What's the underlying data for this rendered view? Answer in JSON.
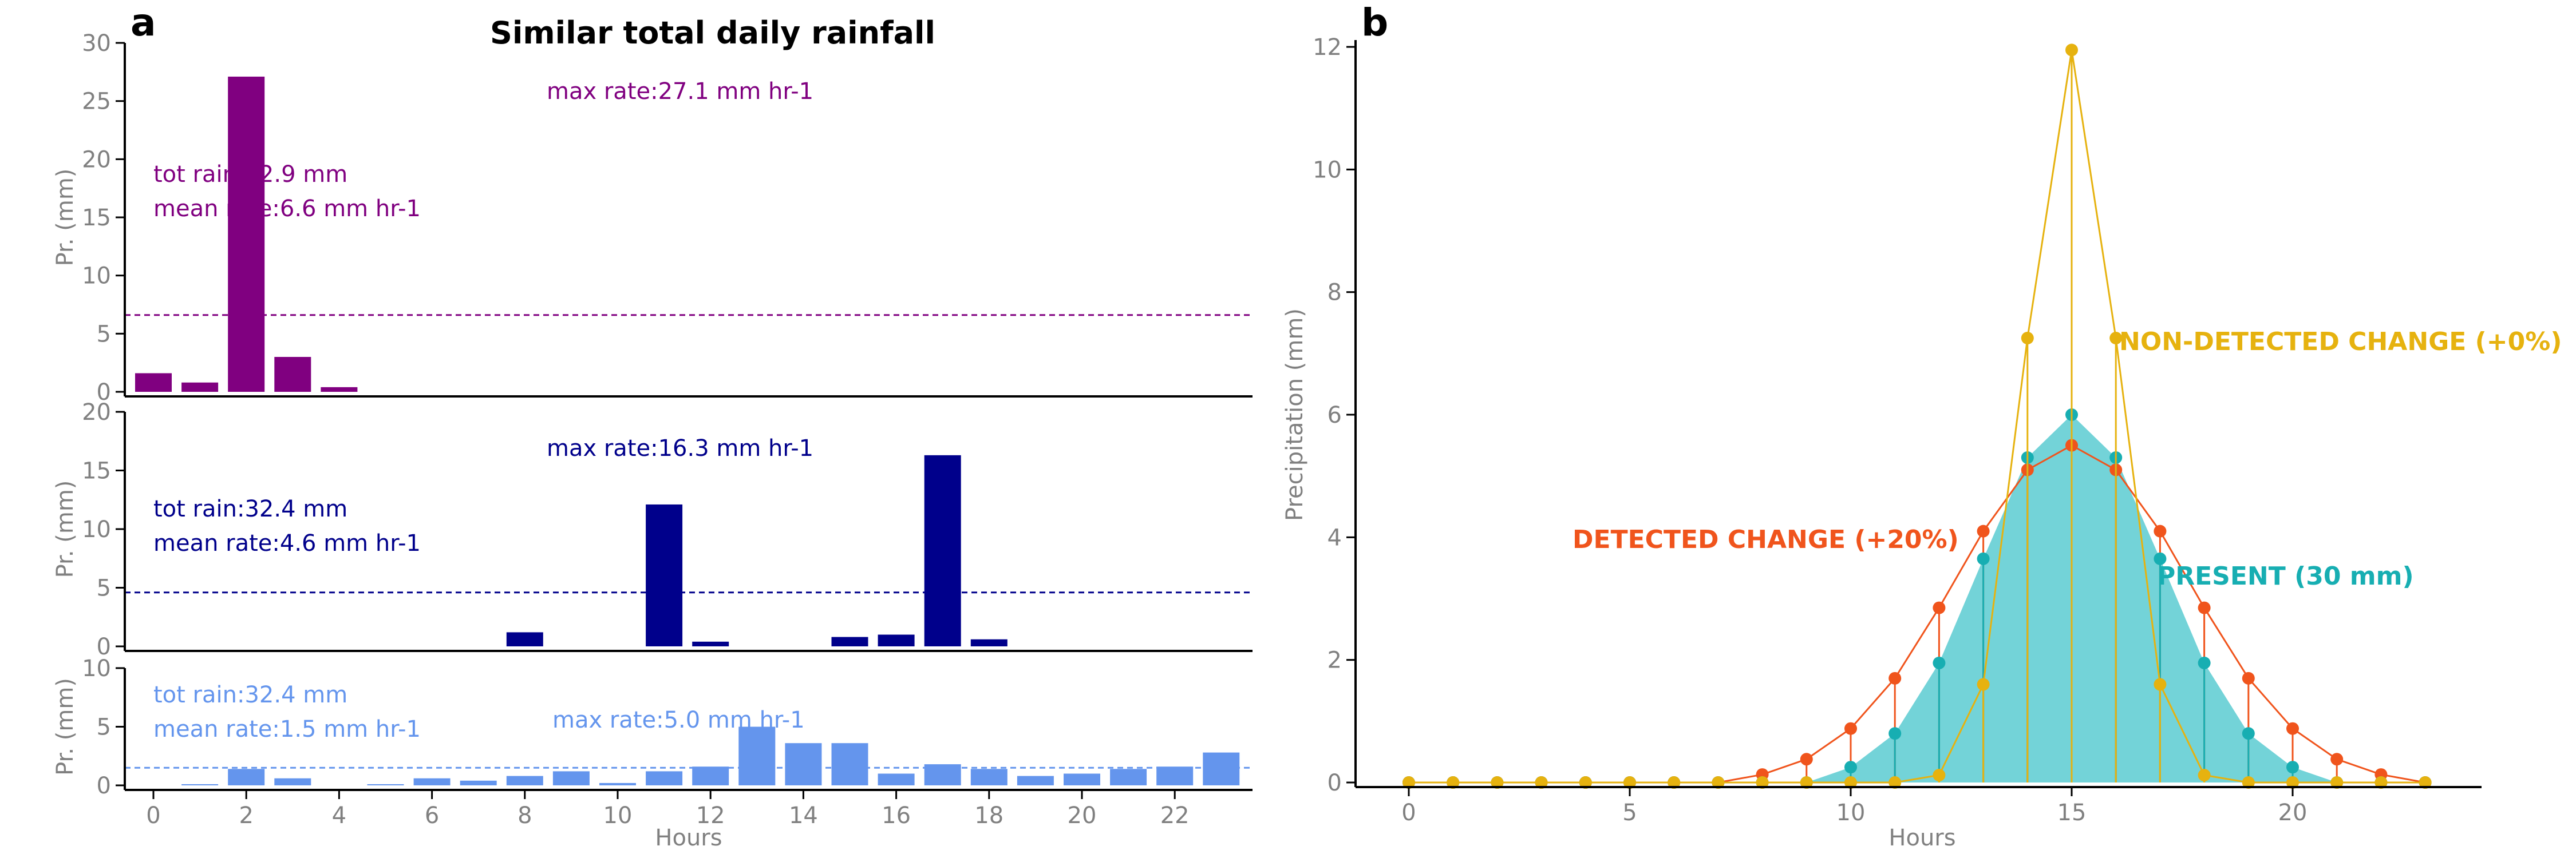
{
  "figure": {
    "title": "Similar total daily rainfall"
  },
  "chart_data": [
    {
      "panel": "a",
      "type": "bar",
      "title": "Similar total daily rainfall",
      "xlabel": "Hours",
      "x_ticks": [
        0,
        2,
        4,
        6,
        8,
        10,
        12,
        14,
        16,
        18,
        20,
        22
      ],
      "x": [
        0,
        1,
        2,
        3,
        4,
        5,
        6,
        7,
        8,
        9,
        10,
        11,
        12,
        13,
        14,
        15,
        16,
        17,
        18,
        19,
        20,
        21,
        22,
        23
      ],
      "subplots": [
        {
          "name": "",
          "color": "#800080",
          "ylabel": "Pr. (mm)",
          "ylim": [
            0,
            30
          ],
          "yticks": [
            0,
            5,
            10,
            15,
            20,
            25,
            30
          ],
          "values": [
            1.6,
            0.8,
            27.1,
            3.0,
            0.4,
            0,
            0,
            0,
            0,
            0,
            0,
            0,
            0,
            0,
            0,
            0,
            0,
            0,
            0,
            0,
            0,
            0,
            0,
            0
          ],
          "mean_line": 6.6,
          "annotations": {
            "tot_rain": "tot rain:32.9 mm",
            "mean_rate": "mean rate:6.6 mm hr-1",
            "max_rate": "max rate:27.1 mm hr-1"
          }
        },
        {
          "name": "",
          "color": "#00008B",
          "ylabel": "Pr. (mm)",
          "ylim": [
            0,
            20
          ],
          "yticks": [
            0,
            5,
            10,
            15,
            20
          ],
          "values": [
            0,
            0,
            0,
            0,
            0,
            0,
            0,
            0,
            1.2,
            0,
            0,
            12.1,
            0.4,
            0,
            0,
            0.8,
            1.0,
            16.3,
            0.6,
            0,
            0,
            0,
            0,
            0
          ],
          "mean_line": 4.6,
          "annotations": {
            "tot_rain": "tot rain:32.4 mm",
            "mean_rate": "mean rate:4.6 mm hr-1",
            "max_rate": "max rate:16.3 mm hr-1"
          }
        },
        {
          "name": "",
          "color": "#6495ED",
          "ylabel": "Pr. (mm)",
          "ylim": [
            0,
            10
          ],
          "yticks": [
            0,
            5,
            10
          ],
          "values": [
            0,
            0.1,
            1.4,
            0.6,
            0,
            0.1,
            0.6,
            0.4,
            0.8,
            1.2,
            0.2,
            1.2,
            1.6,
            5.0,
            3.6,
            3.6,
            1.0,
            1.8,
            1.4,
            0.8,
            1.0,
            1.4,
            1.6,
            2.8
          ],
          "mean_line": 1.5,
          "annotations": {
            "tot_rain": "tot rain:32.4 mm",
            "mean_rate": "mean rate:1.5 mm hr-1",
            "max_rate": "max rate:5.0 mm hr-1"
          }
        }
      ]
    },
    {
      "panel": "b",
      "type": "line",
      "xlabel": "Hours",
      "ylabel": "Precipitation (mm)",
      "xlim": [
        -1,
        24
      ],
      "ylim": [
        0,
        12
      ],
      "xticks": [
        0,
        5,
        10,
        15,
        20
      ],
      "yticks": [
        0,
        2,
        4,
        6,
        8,
        10,
        12
      ],
      "x": [
        0,
        1,
        2,
        3,
        4,
        5,
        6,
        7,
        8,
        9,
        10,
        11,
        12,
        13,
        14,
        15,
        16,
        17,
        18,
        19,
        20,
        21,
        22,
        23
      ],
      "series": [
        {
          "name": "PRESENT (30 mm)",
          "color": "#17AEB2",
          "fill": "#73D3D8",
          "style": "filled-stem",
          "values": [
            0,
            0,
            0,
            0,
            0,
            0,
            0,
            0,
            0,
            0,
            0.25,
            0.8,
            1.95,
            3.65,
            5.3,
            6.0,
            5.3,
            3.65,
            1.95,
            0.8,
            0.25,
            0,
            0,
            0
          ]
        },
        {
          "name": "DETECTED CHANGE (+20%)",
          "color": "#F0541C",
          "style": "line-markers-stem",
          "values": [
            0,
            0,
            0,
            0,
            0,
            0,
            0,
            0,
            0.13,
            0.38,
            0.88,
            1.7,
            2.85,
            4.1,
            5.1,
            5.5,
            5.1,
            4.1,
            2.85,
            1.7,
            0.88,
            0.38,
            0.13,
            0
          ]
        },
        {
          "name": "NON-DETECTED CHANGE (+0%)",
          "color": "#E6B20F",
          "style": "line-markers-stem",
          "values": [
            0,
            0,
            0,
            0,
            0,
            0,
            0,
            0,
            0,
            0,
            0,
            0,
            0.12,
            1.6,
            7.25,
            11.95,
            7.25,
            1.6,
            0.12,
            0,
            0,
            0,
            0,
            0
          ]
        }
      ]
    }
  ]
}
